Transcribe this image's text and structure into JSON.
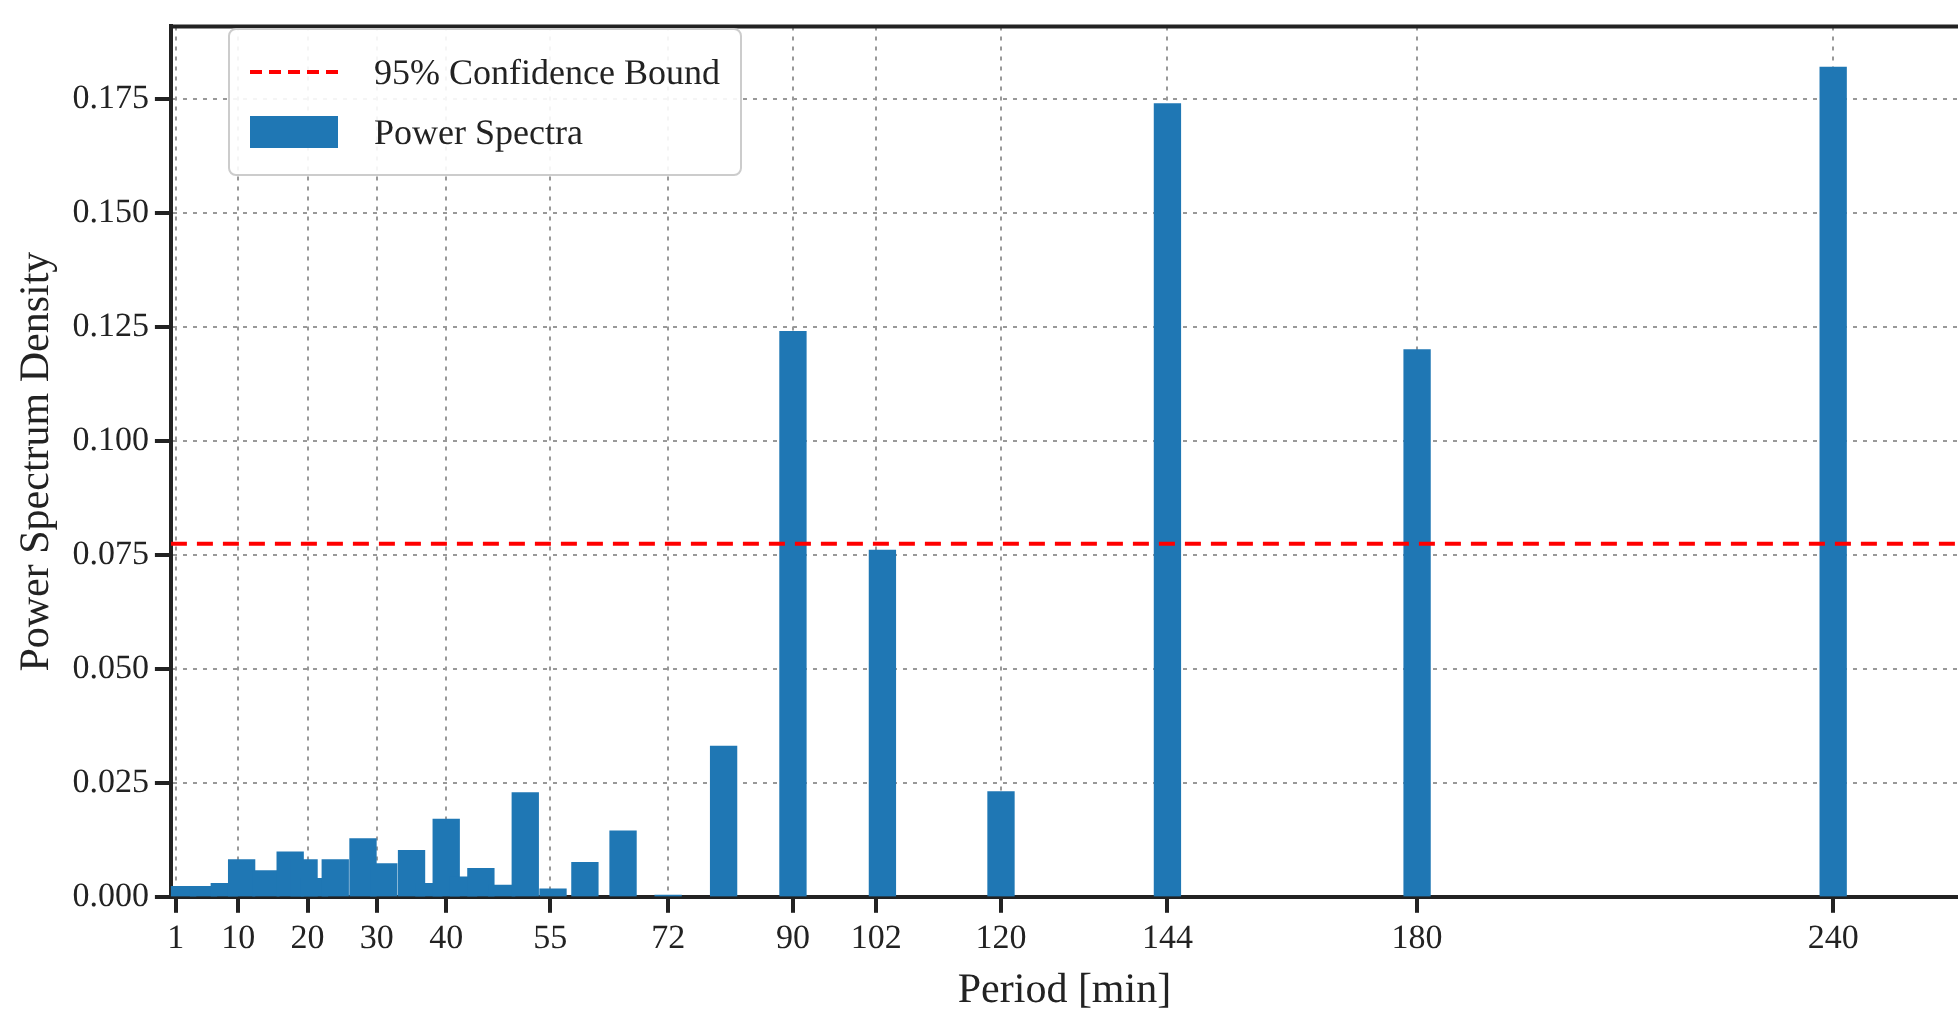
{
  "chart_data": {
    "type": "bar",
    "xlabel": "Period [min]",
    "ylabel": "Power Spectrum Density",
    "x": [
      2,
      5,
      8,
      10.5,
      14,
      17.5,
      19.5,
      21,
      24,
      28,
      31,
      35,
      37.5,
      40,
      42.5,
      45,
      48,
      51.4,
      55.4,
      60,
      65.5,
      72,
      80,
      90,
      102.9,
      120,
      144,
      180,
      240
    ],
    "series": [
      {
        "name": "Power Spectra",
        "color": "#1f77b4",
        "values": [
          0.0022,
          0.0022,
          0.0029,
          0.0081,
          0.0057,
          0.0098,
          0.0081,
          0.004,
          0.0081,
          0.0127,
          0.0072,
          0.0101,
          0.0029,
          0.017,
          0.0043,
          0.0062,
          0.0025,
          0.0228,
          0.0017,
          0.0075,
          0.0144,
          0.0003,
          0.033,
          0.124,
          0.076,
          0.023,
          0.174,
          0.12,
          0.182
        ]
      }
    ],
    "xlim": [
      0.3,
      258
    ],
    "xticks": [
      1,
      10,
      20,
      30,
      40,
      55,
      72,
      90,
      102,
      120,
      144,
      180,
      240
    ],
    "ylim": [
      0,
      0.191
    ],
    "yticks": [
      {
        "value": 0,
        "label": "0.000"
      },
      {
        "value": 0.025,
        "label": "0.025"
      },
      {
        "value": 0.05,
        "label": "0.050"
      },
      {
        "value": 0.075,
        "label": "0.075"
      },
      {
        "value": 0.1,
        "label": "0.100"
      },
      {
        "value": 0.125,
        "label": "0.125"
      },
      {
        "value": 0.15,
        "label": "0.150"
      },
      {
        "value": 0.175,
        "label": "0.175"
      }
    ],
    "ref_lines": [
      {
        "axis": "y",
        "value": 0.0775,
        "label": "95% Confidence Bound",
        "color": "#ff0000",
        "line_style": "dashed"
      }
    ],
    "grid": true,
    "legend": "top left"
  }
}
